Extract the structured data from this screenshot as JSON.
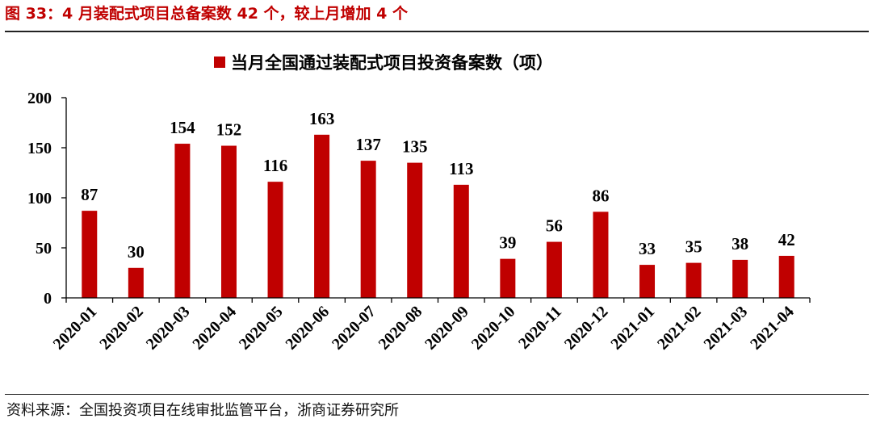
{
  "figure": {
    "title": "图  33：4 月装配式项目总备案数 42 个，较上月增加 4 个",
    "source": "资料来源：全国投资项目在线审批监管平台，浙商证券研究所"
  },
  "chart_data": {
    "type": "bar",
    "categories": [
      "2020-01",
      "2020-02",
      "2020-03",
      "2020-04",
      "2020-05",
      "2020-06",
      "2020-07",
      "2020-08",
      "2020-09",
      "2020-10",
      "2020-11",
      "2020-12",
      "2021-01",
      "2021-02",
      "2021-03",
      "2021-04"
    ],
    "series": [
      {
        "name": "当月全国通过装配式项目投资备案数（项）",
        "values": [
          87,
          30,
          154,
          152,
          116,
          163,
          137,
          135,
          113,
          39,
          56,
          86,
          33,
          35,
          38,
          42
        ]
      }
    ],
    "ylim": [
      0,
      200
    ],
    "yticks": [
      0,
      50,
      100,
      150,
      200
    ],
    "grid": false,
    "legend": "top-center",
    "data_labels": true,
    "colors": {
      "bar": "#c00000",
      "title": "#c00000"
    }
  }
}
